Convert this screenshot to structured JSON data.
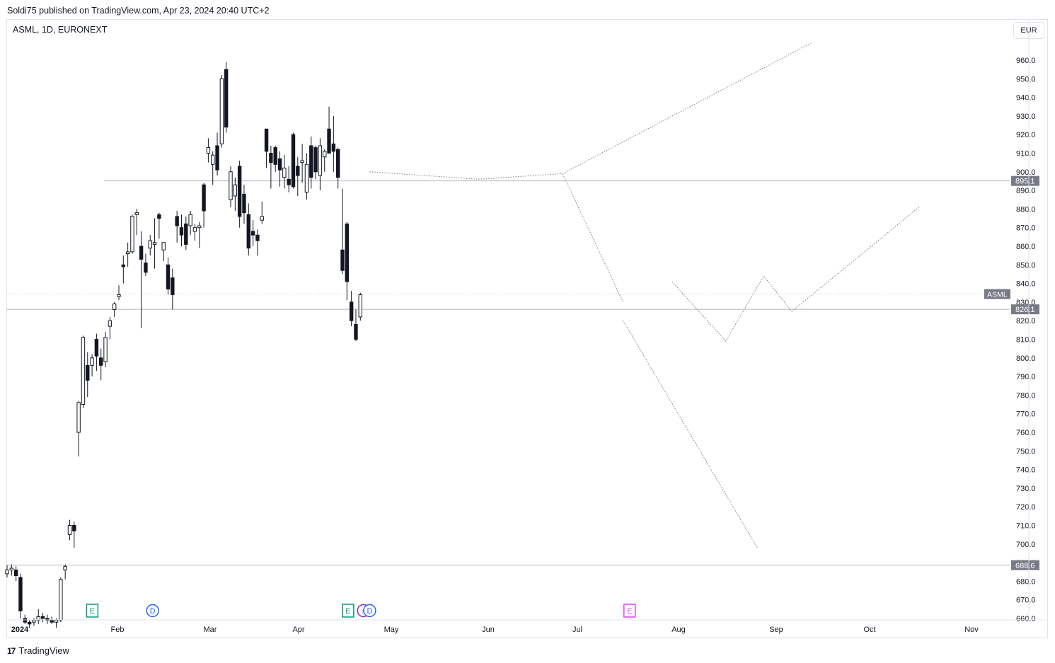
{
  "header": {
    "published_by": "Soldi75 published on TradingView.com, Apr 23, 2024 20:40 UTC+2"
  },
  "chart_header": {
    "symbol_line": "ASML, 1D, EURONEXT",
    "currency_button": "EUR"
  },
  "footer": {
    "brand_logo": "17",
    "brand_name": "TradingView"
  },
  "colors": {
    "candle": "#131722",
    "axis_text": "#131722",
    "grid_line": "#9598a1",
    "label_bg": "#787b86",
    "earnings_teal": "#089981",
    "earnings_magenta": "#e040fb",
    "dividend_blue": "#2962ff",
    "split_magenta": "#9c27b0"
  },
  "chart_data": {
    "type": "candlestick",
    "title": "ASML, 1D, EURONEXT",
    "ylim": [
      660,
      970
    ],
    "y_ticks": [
      "960.0",
      "950.0",
      "940.0",
      "930.0",
      "920.0",
      "910.0",
      "900.0",
      "890.0",
      "880.0",
      "870.0",
      "860.0",
      "850.0",
      "840.0",
      "830.0",
      "820.0",
      "810.0",
      "800.0",
      "790.0",
      "780.0",
      "770.0",
      "760.0",
      "750.0",
      "740.0",
      "730.0",
      "720.0",
      "710.0",
      "700.0",
      "690.0",
      "680.0",
      "670.0",
      "660.0"
    ],
    "x_ticks": [
      "2024",
      "Feb",
      "Mar",
      "Apr",
      "May",
      "Jun",
      "Jul",
      "Aug",
      "Sep",
      "Oct",
      "Nov"
    ],
    "price_labels": [
      {
        "value": 895.1,
        "text": "895.1"
      },
      {
        "value": 826.1,
        "text": "826.1"
      },
      {
        "value": 688.6,
        "text": "688.6"
      }
    ],
    "last_price_tag": {
      "text": "ASML",
      "value": 834.3
    },
    "candles": [
      {
        "o": 684,
        "h": 688.6,
        "l": 682,
        "c": 686
      },
      {
        "o": 686,
        "h": 689,
        "l": 683,
        "c": 687
      },
      {
        "o": 686,
        "h": 688,
        "l": 680,
        "c": 683
      },
      {
        "o": 682,
        "h": 684,
        "l": 660,
        "c": 664
      },
      {
        "o": 660,
        "h": 662,
        "l": 657,
        "c": 658
      },
      {
        "o": 658,
        "h": 659,
        "l": 655,
        "c": 657
      },
      {
        "o": 658,
        "h": 660,
        "l": 656,
        "c": 659
      },
      {
        "o": 659,
        "h": 665,
        "l": 657,
        "c": 661
      },
      {
        "o": 661,
        "h": 663,
        "l": 658,
        "c": 660
      },
      {
        "o": 660,
        "h": 662,
        "l": 657,
        "c": 659
      },
      {
        "o": 659,
        "h": 661,
        "l": 657,
        "c": 658
      },
      {
        "o": 658,
        "h": 660,
        "l": 655,
        "c": 659
      },
      {
        "o": 659,
        "h": 682,
        "l": 658,
        "c": 681
      },
      {
        "o": 686,
        "h": 689,
        "l": 681,
        "c": 688
      },
      {
        "o": 705,
        "h": 713,
        "l": 702,
        "c": 710
      },
      {
        "o": 710,
        "h": 712,
        "l": 698,
        "c": 707
      },
      {
        "o": 760,
        "h": 777,
        "l": 747,
        "c": 776
      },
      {
        "o": 775,
        "h": 812,
        "l": 773,
        "c": 811
      },
      {
        "o": 796,
        "h": 803,
        "l": 779,
        "c": 788
      },
      {
        "o": 796,
        "h": 802,
        "l": 790,
        "c": 800
      },
      {
        "o": 810,
        "h": 813,
        "l": 793,
        "c": 801
      },
      {
        "o": 800,
        "h": 805,
        "l": 788,
        "c": 796
      },
      {
        "o": 798,
        "h": 814,
        "l": 795,
        "c": 811
      },
      {
        "o": 817,
        "h": 822,
        "l": 810,
        "c": 820
      },
      {
        "o": 826,
        "h": 830,
        "l": 822,
        "c": 829
      },
      {
        "o": 833,
        "h": 839,
        "l": 831,
        "c": 834
      },
      {
        "o": 850,
        "h": 855,
        "l": 840,
        "c": 849
      },
      {
        "o": 856,
        "h": 862,
        "l": 849,
        "c": 857
      },
      {
        "o": 857,
        "h": 877,
        "l": 856,
        "c": 876
      },
      {
        "o": 877,
        "h": 880,
        "l": 866,
        "c": 878
      },
      {
        "o": 860,
        "h": 868,
        "l": 816,
        "c": 853
      },
      {
        "o": 851,
        "h": 856,
        "l": 844,
        "c": 846
      },
      {
        "o": 859,
        "h": 866,
        "l": 855,
        "c": 863
      },
      {
        "o": 861,
        "h": 875,
        "l": 848,
        "c": 862
      },
      {
        "o": 877,
        "h": 878,
        "l": 864,
        "c": 875
      },
      {
        "o": 858,
        "h": 862,
        "l": 852,
        "c": 862
      },
      {
        "o": 850,
        "h": 854,
        "l": 834,
        "c": 837
      },
      {
        "o": 843,
        "h": 848,
        "l": 826,
        "c": 834
      },
      {
        "o": 876,
        "h": 879,
        "l": 862,
        "c": 871
      },
      {
        "o": 870,
        "h": 877,
        "l": 860,
        "c": 866
      },
      {
        "o": 872,
        "h": 876,
        "l": 858,
        "c": 861
      },
      {
        "o": 871,
        "h": 879,
        "l": 866,
        "c": 877
      },
      {
        "o": 868,
        "h": 872,
        "l": 863,
        "c": 870
      },
      {
        "o": 870,
        "h": 873,
        "l": 859,
        "c": 871
      },
      {
        "o": 893,
        "h": 894,
        "l": 870,
        "c": 879
      },
      {
        "o": 910,
        "h": 918,
        "l": 905,
        "c": 913
      },
      {
        "o": 904,
        "h": 911,
        "l": 893,
        "c": 909
      },
      {
        "o": 914,
        "h": 921,
        "l": 898,
        "c": 901
      },
      {
        "o": 915,
        "h": 952,
        "l": 913,
        "c": 950
      },
      {
        "o": 955,
        "h": 959,
        "l": 921,
        "c": 924
      },
      {
        "o": 885,
        "h": 903,
        "l": 881,
        "c": 900
      },
      {
        "o": 887,
        "h": 897,
        "l": 879,
        "c": 893
      },
      {
        "o": 903,
        "h": 906,
        "l": 870,
        "c": 876
      },
      {
        "o": 888,
        "h": 893,
        "l": 872,
        "c": 878
      },
      {
        "o": 877,
        "h": 883,
        "l": 855,
        "c": 859
      },
      {
        "o": 868,
        "h": 874,
        "l": 860,
        "c": 866
      },
      {
        "o": 866,
        "h": 869,
        "l": 855,
        "c": 863
      },
      {
        "o": 874,
        "h": 884,
        "l": 872,
        "c": 876
      },
      {
        "o": 923,
        "h": 923,
        "l": 902,
        "c": 911
      },
      {
        "o": 910,
        "h": 914,
        "l": 891,
        "c": 905
      },
      {
        "o": 913,
        "h": 914,
        "l": 900,
        "c": 904
      },
      {
        "o": 907,
        "h": 911,
        "l": 892,
        "c": 901
      },
      {
        "o": 897,
        "h": 909,
        "l": 891,
        "c": 902
      },
      {
        "o": 896,
        "h": 903,
        "l": 889,
        "c": 893
      },
      {
        "o": 920,
        "h": 921,
        "l": 891,
        "c": 892
      },
      {
        "o": 903,
        "h": 908,
        "l": 887,
        "c": 898
      },
      {
        "o": 905,
        "h": 915,
        "l": 894,
        "c": 906
      },
      {
        "o": 889,
        "h": 910,
        "l": 885,
        "c": 904
      },
      {
        "o": 914,
        "h": 919,
        "l": 891,
        "c": 897
      },
      {
        "o": 913,
        "h": 914,
        "l": 896,
        "c": 900
      },
      {
        "o": 898,
        "h": 918,
        "l": 890,
        "c": 914
      },
      {
        "o": 908,
        "h": 912,
        "l": 900,
        "c": 911
      },
      {
        "o": 923,
        "h": 935,
        "l": 910,
        "c": 910
      },
      {
        "o": 915,
        "h": 930,
        "l": 900,
        "c": 911
      },
      {
        "o": 912,
        "h": 913,
        "l": 891,
        "c": 897
      },
      {
        "o": 858,
        "h": 891,
        "l": 845,
        "c": 847
      },
      {
        "o": 872,
        "h": 873,
        "l": 831,
        "c": 841
      },
      {
        "o": 830,
        "h": 836,
        "l": 817,
        "c": 820
      },
      {
        "o": 818,
        "h": 826,
        "l": 809,
        "c": 810
      },
      {
        "o": 822,
        "h": 835,
        "l": 820,
        "c": 834
      }
    ],
    "projection_paths": [
      [
        [
          "Apr 24",
          900
        ],
        [
          "May 29",
          896
        ],
        [
          "Jun 26",
          899
        ],
        [
          "Sep 12",
          969
        ]
      ],
      [
        [
          "Jun 26",
          899
        ],
        [
          "Jul 15",
          830
        ]
      ],
      [
        [
          "Jul 15",
          820
        ],
        [
          "Aug 26",
          698
        ]
      ],
      [
        [
          "Jul 30",
          841
        ],
        [
          "Aug 16",
          809
        ],
        [
          "Aug 28",
          844
        ],
        [
          "Sep 6",
          825
        ],
        [
          "Oct 16",
          881
        ]
      ]
    ],
    "event_markers": [
      {
        "letter": "E",
        "date": "Jan 24",
        "kind": "earnings-past"
      },
      {
        "letter": "D",
        "date": "Feb 12",
        "kind": "dividend"
      },
      {
        "letter": "E",
        "date": "Apr 17",
        "kind": "earnings-past"
      },
      {
        "letter": "⚡",
        "date": "Apr 22",
        "kind": "split-event"
      },
      {
        "letter": "D",
        "date": "Apr 24",
        "kind": "dividend"
      },
      {
        "letter": "E",
        "date": "Jul 17",
        "kind": "earnings-future"
      }
    ]
  }
}
